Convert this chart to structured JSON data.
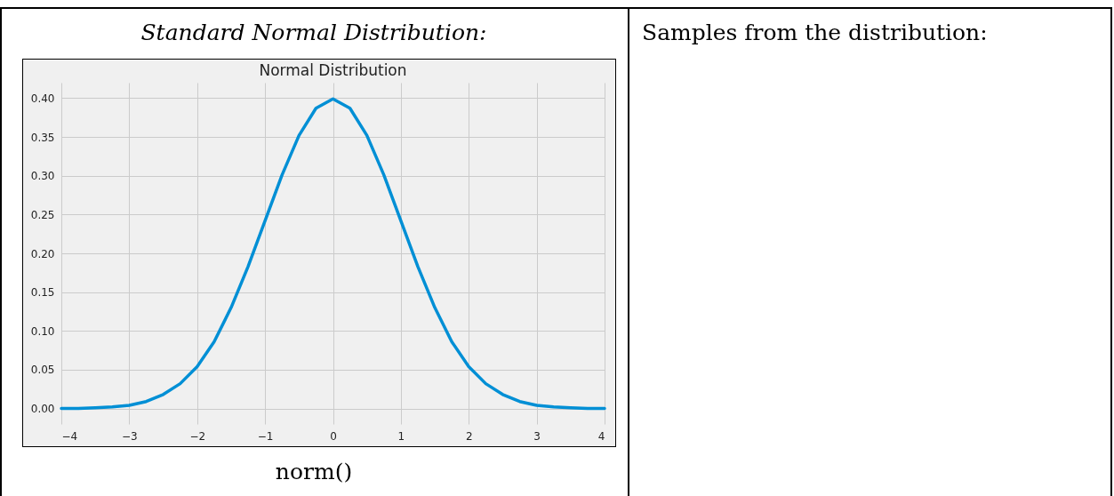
{
  "chart_data": {
    "type": "line",
    "title": "Normal Distribution",
    "annotations": [
      "Standard Normal Distribution:",
      "norm()",
      "Samples from the distribution:"
    ],
    "x": [
      -4,
      -3.75,
      -3.5,
      -3.25,
      -3,
      -2.75,
      -2.5,
      -2.25,
      -2,
      -1.75,
      -1.5,
      -1.25,
      -1,
      -0.75,
      -0.5,
      -0.25,
      0,
      0.25,
      0.5,
      0.75,
      1,
      1.25,
      1.5,
      1.75,
      2,
      2.25,
      2.5,
      2.75,
      3,
      3.25,
      3.5,
      3.75,
      4
    ],
    "series": [
      {
        "color": "#008fd5",
        "values": [
          0.0,
          0.0,
          0.001,
          0.002,
          0.004,
          0.009,
          0.018,
          0.032,
          0.054,
          0.086,
          0.13,
          0.183,
          0.242,
          0.301,
          0.352,
          0.387,
          0.399,
          0.387,
          0.352,
          0.301,
          0.242,
          0.183,
          0.13,
          0.086,
          0.054,
          0.032,
          0.018,
          0.009,
          0.004,
          0.002,
          0.001,
          0.0,
          0.0
        ]
      }
    ],
    "xlim": [
      -4,
      4
    ],
    "ylim": [
      -0.02,
      0.42
    ],
    "xticks": [
      {
        "value": -4,
        "label": "−4"
      },
      {
        "value": -3,
        "label": "−3"
      },
      {
        "value": -2,
        "label": "−2"
      },
      {
        "value": -1,
        "label": "−1"
      },
      0,
      1,
      2,
      3,
      4
    ],
    "yticks": [
      {
        "value": 0,
        "label": "0.00"
      },
      {
        "value": 0.05,
        "label": "0.05"
      },
      {
        "value": 0.1,
        "label": "0.10"
      },
      {
        "value": 0.15,
        "label": "0.15"
      },
      {
        "value": 0.2,
        "label": "0.20"
      },
      {
        "value": 0.25,
        "label": "0.25"
      },
      {
        "value": 0.3,
        "label": "0.30"
      },
      {
        "value": 0.35,
        "label": "0.35"
      },
      {
        "value": 0.4,
        "label": "0.40"
      }
    ],
    "grid": true,
    "line_style": "solid",
    "marker": "none"
  }
}
